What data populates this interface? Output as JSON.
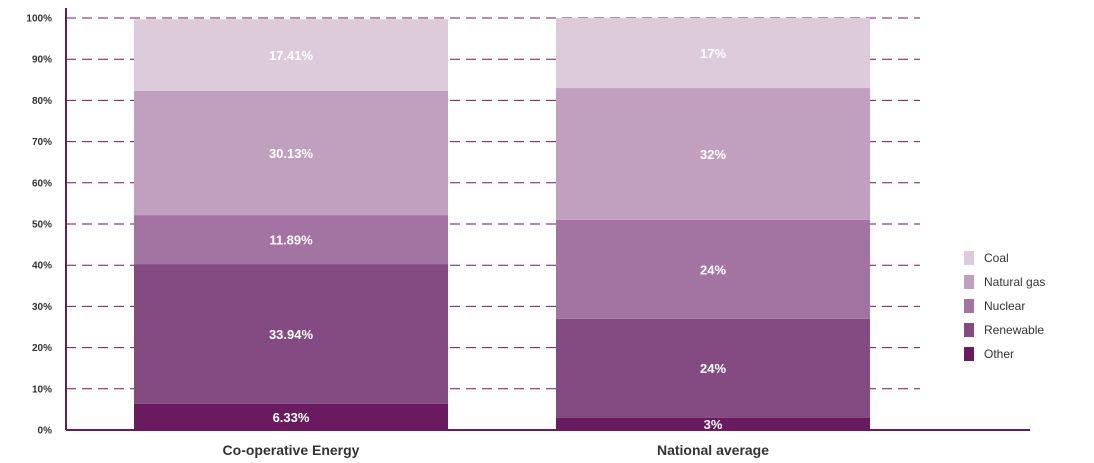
{
  "chart_data": {
    "type": "bar",
    "stacked": true,
    "categories": [
      "Co-operative Energy",
      "National average"
    ],
    "series": [
      {
        "name": "Other",
        "values": [
          6.33,
          3
        ],
        "labels": [
          "6.33%",
          "3%"
        ],
        "color": "#6a1a5e"
      },
      {
        "name": "Renewable",
        "values": [
          33.94,
          24
        ],
        "labels": [
          "33.94%",
          "24%"
        ],
        "color": "#844a82"
      },
      {
        "name": "Nuclear",
        "values": [
          11.89,
          24
        ],
        "labels": [
          "11.89%",
          "24%"
        ],
        "color": "#a373a2"
      },
      {
        "name": "Natural gas",
        "values": [
          30.13,
          32
        ],
        "labels": [
          "30.13%",
          "32%"
        ],
        "color": "#c09fbf"
      },
      {
        "name": "Coal",
        "values": [
          17.41,
          17
        ],
        "labels": [
          "17.41%",
          "17%"
        ],
        "color": "#ddcbdc"
      }
    ],
    "yticks": [
      "0%",
      "10%",
      "20%",
      "30%",
      "40%",
      "50%",
      "60%",
      "70%",
      "80%",
      "90%",
      "100%"
    ],
    "ylim": [
      0,
      100
    ],
    "grid": "dashed",
    "legend_position": "right",
    "legend_order": [
      "Coal",
      "Natural gas",
      "Nuclear",
      "Renewable",
      "Other"
    ],
    "axis_color": "#6a1a5e",
    "grid_color": "#6a1a5e"
  }
}
